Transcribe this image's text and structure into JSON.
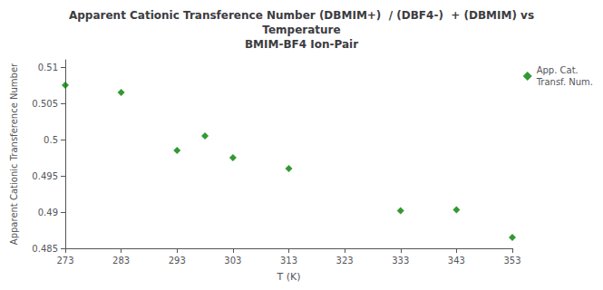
{
  "chart_data": {
    "type": "scatter",
    "title": "Apparent Cationic Transference Number (DBMIM+)  / (DBF4-)  + (DBMIM) vs\nTemperature\nBMIM-BF4 Ion-Pair",
    "x_label": "T (K)",
    "y_label": "Apparent Cationic Transference Number",
    "series": [
      {
        "name": "App. Cat.\nTransf. Num.",
        "color": "#008000",
        "marker": "diamond",
        "x": [
          273,
          283,
          293,
          298,
          303,
          313,
          333,
          343,
          353
        ],
        "values": [
          0.5075,
          0.5065,
          0.4985,
          0.5005,
          0.4975,
          0.496,
          0.4902,
          0.4903,
          0.4865
        ]
      }
    ],
    "xlim": [
      273,
      353
    ],
    "xticks": [
      273,
      283,
      293,
      303,
      313,
      323,
      333,
      343,
      353
    ],
    "ylim": [
      0.485,
      0.511
    ],
    "yticks": [
      0.485,
      0.49,
      0.495,
      0.5,
      0.505,
      0.51
    ],
    "grid": false,
    "legend": "upper right"
  }
}
